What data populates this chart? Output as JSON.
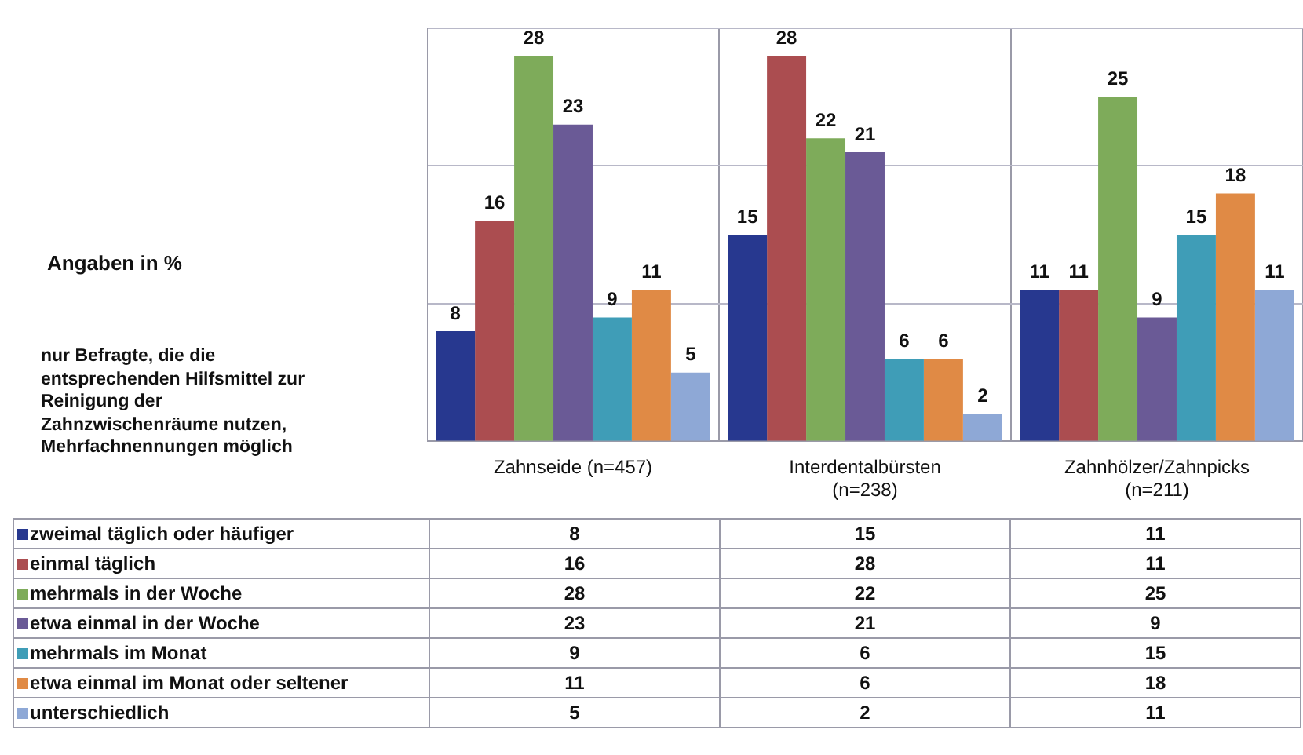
{
  "chart_data": {
    "type": "bar",
    "categories": [
      "Zahnseide (n=457)",
      "Interdentalbürsten (n=238)",
      "Zahnhölzer/Zahnpicks (n=211)"
    ],
    "series": [
      {
        "name": "zweimal täglich oder häufiger",
        "color": "#27388f",
        "values": [
          8,
          15,
          11
        ]
      },
      {
        "name": "einmal täglich",
        "color": "#ab4d50",
        "values": [
          16,
          28,
          11
        ]
      },
      {
        "name": "mehrmals in der Woche",
        "color": "#7eab5a",
        "values": [
          28,
          22,
          25
        ]
      },
      {
        "name": "etwa einmal in der Woche",
        "color": "#6a5a96",
        "values": [
          23,
          21,
          9
        ]
      },
      {
        "name": "mehrmals im Monat",
        "color": "#3f9db7",
        "values": [
          9,
          6,
          15
        ]
      },
      {
        "name": "etwa einmal im Monat oder seltener",
        "color": "#e08a45",
        "values": [
          11,
          6,
          18
        ]
      },
      {
        "name": "unterschiedlich",
        "color": "#8ea8d6",
        "values": [
          5,
          2,
          11
        ]
      }
    ],
    "ylim": [
      0,
      30
    ],
    "yticks": [
      {
        "value": 0,
        "label": null
      },
      {
        "value": 10,
        "label": null
      },
      {
        "value": 20,
        "label": null
      },
      {
        "value": 30,
        "label": null
      }
    ],
    "tick_labels": "x",
    "grid": true,
    "legend": "bottom",
    "data_labels": true,
    "annotations": [
      "Angaben in %",
      "nur Befragte, die die entsprechenden Hilfsmittel zur Reinigung der Zahnzwischenräume nutzen, Mehrfachnennungen möglich",
      "8",
      "16",
      "28",
      "23",
      "9",
      "11",
      "5",
      "15",
      "28",
      "22",
      "21",
      "6",
      "6",
      "2",
      "11",
      "11",
      "25",
      "9",
      "15",
      "18",
      "11"
    ]
  }
}
